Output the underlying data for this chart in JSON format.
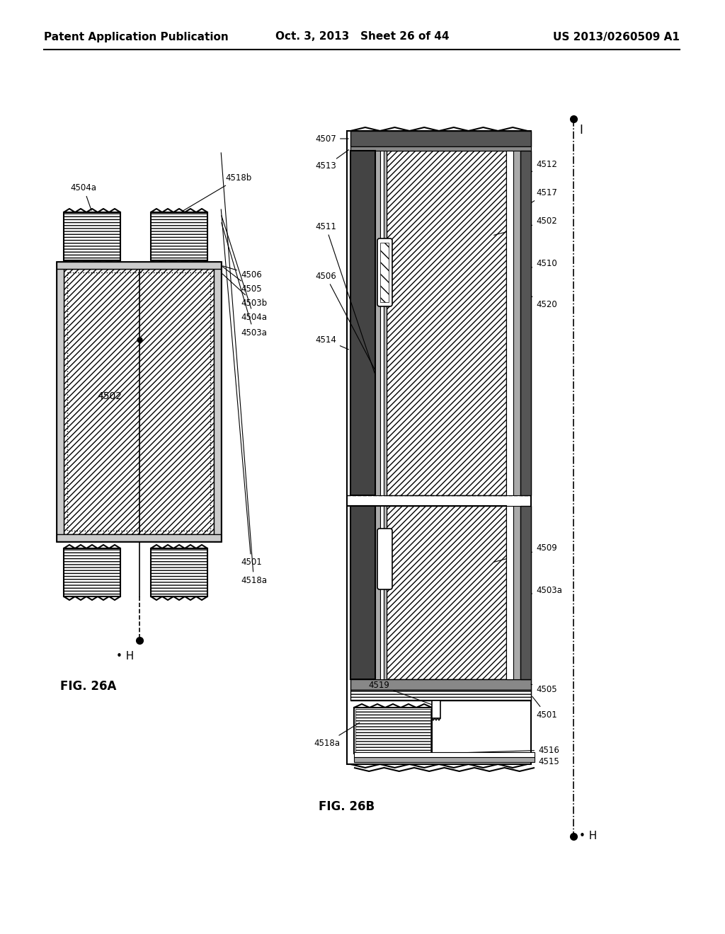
{
  "header_left": "Patent Application Publication",
  "header_center": "Oct. 3, 2013   Sheet 26 of 44",
  "header_right": "US 2013/0260509 A1",
  "fig_label_a": "FIG. 26A",
  "fig_label_b": "FIG. 26B",
  "bg_color": "#ffffff"
}
